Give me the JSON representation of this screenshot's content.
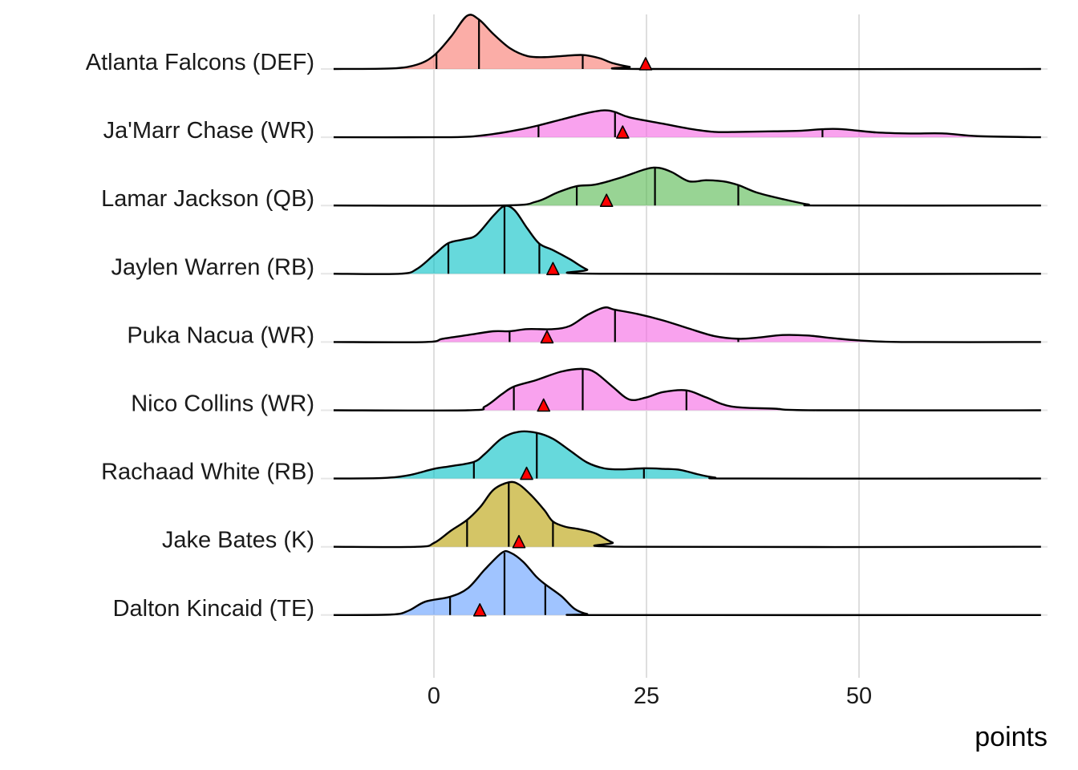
{
  "chart_data": {
    "type": "ridgeline",
    "title": "",
    "xlabel": "points",
    "ylabel": "",
    "xlim": [
      -11.8,
      71.4
    ],
    "xticks": [
      0,
      25,
      50
    ],
    "xtick_labels": [
      "0",
      "25",
      "50"
    ],
    "grid": "vertical major gridlines",
    "marker_color": "#FF0000",
    "series": [
      {
        "name": "Atlanta Falcons (DEF)",
        "color": "#F8766D",
        "quantiles": [
          0.3,
          5.3,
          17.5
        ],
        "marker": 24.9,
        "density": [
          [
            -11.8,
            0
          ],
          [
            -5,
            0.01
          ],
          [
            -2,
            0.08
          ],
          [
            0,
            0.25
          ],
          [
            2,
            0.6
          ],
          [
            3.9,
            0.99
          ],
          [
            5.3,
            0.92
          ],
          [
            7,
            0.65
          ],
          [
            9,
            0.38
          ],
          [
            11,
            0.24
          ],
          [
            13,
            0.22
          ],
          [
            15,
            0.24
          ],
          [
            17.5,
            0.26
          ],
          [
            19.5,
            0.2
          ],
          [
            21,
            0.11
          ],
          [
            23,
            0.04
          ],
          [
            24.9,
            0
          ],
          [
            71.4,
            0
          ]
        ]
      },
      {
        "name": "Ja'Marr Chase (WR)",
        "color": "#F564E3",
        "quantiles": [
          12.3,
          21.3,
          45.7
        ],
        "marker": 22.2,
        "density": [
          [
            -11.8,
            0
          ],
          [
            0,
            0
          ],
          [
            4,
            0.01
          ],
          [
            7,
            0.06
          ],
          [
            10,
            0.14
          ],
          [
            12.3,
            0.22
          ],
          [
            15,
            0.33
          ],
          [
            18,
            0.45
          ],
          [
            20,
            0.5
          ],
          [
            21.3,
            0.47
          ],
          [
            23,
            0.37
          ],
          [
            27,
            0.25
          ],
          [
            30,
            0.16
          ],
          [
            33,
            0.1
          ],
          [
            36,
            0.1
          ],
          [
            40,
            0.11
          ],
          [
            43,
            0.12
          ],
          [
            45.7,
            0.15
          ],
          [
            48,
            0.15
          ],
          [
            52,
            0.09
          ],
          [
            56,
            0.07
          ],
          [
            60,
            0.07
          ],
          [
            64,
            0.02
          ],
          [
            71.4,
            0
          ]
        ]
      },
      {
        "name": "Lamar Jackson (QB)",
        "color": "#53B74C",
        "quantiles": [
          16.8,
          26.0,
          35.8
        ],
        "marker": 20.3,
        "density": [
          [
            -11.8,
            0
          ],
          [
            8,
            0
          ],
          [
            12,
            0.07
          ],
          [
            14.5,
            0.24
          ],
          [
            16.8,
            0.36
          ],
          [
            19,
            0.39
          ],
          [
            22,
            0.52
          ],
          [
            25,
            0.68
          ],
          [
            26.5,
            0.7
          ],
          [
            28,
            0.62
          ],
          [
            30,
            0.45
          ],
          [
            32,
            0.47
          ],
          [
            34,
            0.45
          ],
          [
            35.8,
            0.38
          ],
          [
            38,
            0.24
          ],
          [
            41,
            0.12
          ],
          [
            44,
            0.02
          ],
          [
            46,
            0
          ],
          [
            71.4,
            0
          ]
        ]
      },
      {
        "name": "Jaylen Warren (RB)",
        "color": "#00BFC4",
        "quantiles": [
          1.7,
          8.3,
          12.4
        ],
        "marker": 14.0,
        "density": [
          [
            -11.8,
            0
          ],
          [
            -4,
            0
          ],
          [
            -2,
            0.09
          ],
          [
            0,
            0.35
          ],
          [
            1.7,
            0.57
          ],
          [
            3.5,
            0.64
          ],
          [
            5,
            0.72
          ],
          [
            7,
            1.08
          ],
          [
            8.3,
            1.26
          ],
          [
            9.5,
            1.18
          ],
          [
            11,
            0.84
          ],
          [
            12.4,
            0.56
          ],
          [
            14,
            0.44
          ],
          [
            16,
            0.27
          ],
          [
            18,
            0.08
          ],
          [
            20,
            0
          ],
          [
            71.4,
            0
          ]
        ]
      },
      {
        "name": "Puka Nacua (WR)",
        "color": "#F564E3",
        "quantiles": [
          8.9,
          21.3,
          35.8
        ],
        "marker": 13.3,
        "density": [
          [
            -11.8,
            0
          ],
          [
            -1,
            0
          ],
          [
            1,
            0.06
          ],
          [
            4,
            0.13
          ],
          [
            7,
            0.2
          ],
          [
            8.9,
            0.2
          ],
          [
            11,
            0.24
          ],
          [
            14,
            0.24
          ],
          [
            16,
            0.3
          ],
          [
            18,
            0.5
          ],
          [
            20,
            0.64
          ],
          [
            21.3,
            0.6
          ],
          [
            24,
            0.52
          ],
          [
            27,
            0.4
          ],
          [
            30,
            0.25
          ],
          [
            33,
            0.11
          ],
          [
            35.8,
            0.06
          ],
          [
            38,
            0.08
          ],
          [
            41,
            0.13
          ],
          [
            44,
            0.12
          ],
          [
            47,
            0.07
          ],
          [
            50,
            0.03
          ],
          [
            55,
            0
          ],
          [
            71.4,
            0
          ]
        ]
      },
      {
        "name": "Nico Collins (WR)",
        "color": "#F564E3",
        "quantiles": [
          9.4,
          17.5,
          29.7
        ],
        "marker": 12.9,
        "density": [
          [
            -11.8,
            0
          ],
          [
            4,
            0
          ],
          [
            6,
            0.07
          ],
          [
            8,
            0.3
          ],
          [
            9.4,
            0.44
          ],
          [
            12,
            0.56
          ],
          [
            15,
            0.72
          ],
          [
            17.5,
            0.77
          ],
          [
            19,
            0.7
          ],
          [
            21,
            0.44
          ],
          [
            23,
            0.2
          ],
          [
            25,
            0.24
          ],
          [
            27,
            0.34
          ],
          [
            29.7,
            0.37
          ],
          [
            32,
            0.24
          ],
          [
            35,
            0.07
          ],
          [
            40,
            0.03
          ],
          [
            45,
            0
          ],
          [
            71.4,
            0
          ]
        ]
      },
      {
        "name": "Rachaad White (RB)",
        "color": "#00BFC4",
        "quantiles": [
          4.7,
          12.1,
          24.7
        ],
        "marker": 10.9,
        "density": [
          [
            -11.8,
            0
          ],
          [
            -6,
            0.01
          ],
          [
            -3,
            0.06
          ],
          [
            0,
            0.18
          ],
          [
            2,
            0.23
          ],
          [
            4.7,
            0.31
          ],
          [
            6,
            0.46
          ],
          [
            8,
            0.75
          ],
          [
            10,
            0.87
          ],
          [
            12.1,
            0.85
          ],
          [
            14,
            0.74
          ],
          [
            16,
            0.52
          ],
          [
            18,
            0.3
          ],
          [
            20,
            0.19
          ],
          [
            22,
            0.17
          ],
          [
            24.7,
            0.19
          ],
          [
            27,
            0.18
          ],
          [
            29,
            0.16
          ],
          [
            31,
            0.08
          ],
          [
            33,
            0.02
          ],
          [
            36,
            0
          ],
          [
            71.4,
            0
          ]
        ]
      },
      {
        "name": "Jake Bates (K)",
        "color": "#B79F00",
        "quantiles": [
          3.9,
          8.8,
          14.0
        ],
        "marker": 10.0,
        "density": [
          [
            -11.8,
            0
          ],
          [
            -2,
            0
          ],
          [
            0,
            0.07
          ],
          [
            2,
            0.3
          ],
          [
            3.9,
            0.5
          ],
          [
            5.5,
            0.75
          ],
          [
            7,
            1.06
          ],
          [
            8.8,
            1.2
          ],
          [
            10,
            1.16
          ],
          [
            11.5,
            0.95
          ],
          [
            13,
            0.68
          ],
          [
            14,
            0.47
          ],
          [
            15.5,
            0.37
          ],
          [
            17,
            0.33
          ],
          [
            19,
            0.25
          ],
          [
            21,
            0.08
          ],
          [
            23,
            0
          ],
          [
            71.4,
            0
          ]
        ]
      },
      {
        "name": "Dalton Kincaid (TE)",
        "color": "#619CFF",
        "quantiles": [
          1.9,
          8.3,
          13.1
        ],
        "marker": 5.4,
        "density": [
          [
            -11.8,
            0
          ],
          [
            -5,
            0.01
          ],
          [
            -3,
            0.08
          ],
          [
            -1,
            0.25
          ],
          [
            1.9,
            0.34
          ],
          [
            4,
            0.5
          ],
          [
            6,
            0.85
          ],
          [
            8,
            1.16
          ],
          [
            9,
            1.16
          ],
          [
            10.5,
            0.99
          ],
          [
            12,
            0.72
          ],
          [
            13.1,
            0.57
          ],
          [
            15,
            0.35
          ],
          [
            16.5,
            0.12
          ],
          [
            18,
            0.02
          ],
          [
            20,
            0
          ],
          [
            71.4,
            0
          ]
        ]
      }
    ]
  }
}
